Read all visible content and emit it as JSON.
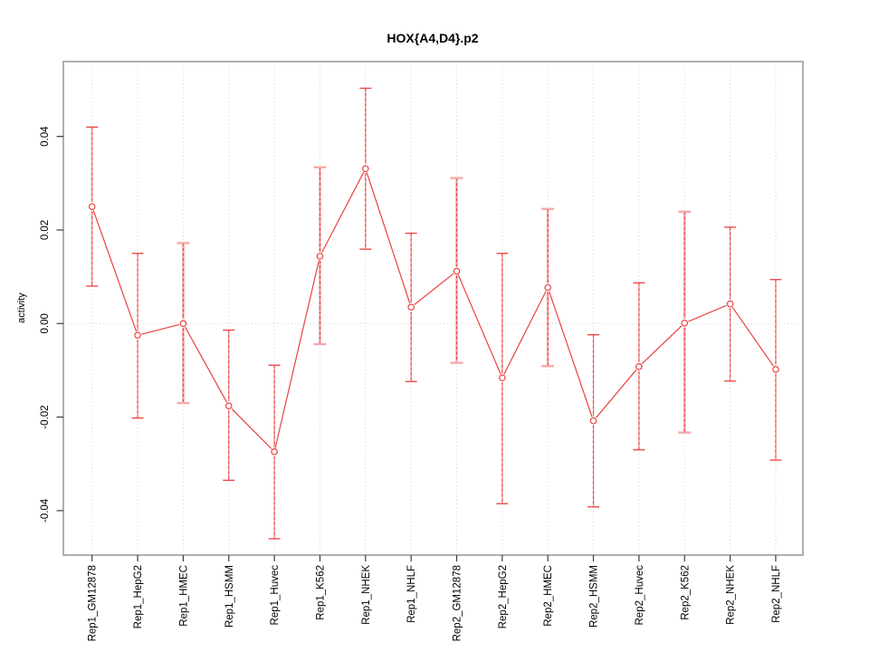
{
  "window": {
    "background": "#ffffff"
  },
  "chart_data": {
    "type": "line",
    "title": "HOX{A4,D4}.p2",
    "xlabel": "",
    "ylabel": "activity",
    "categories": [
      "Rep1_GM12878",
      "Rep1_HepG2",
      "Rep1_HMEC",
      "Rep1_HSMM",
      "Rep1_Huvec",
      "Rep1_K562",
      "Rep1_NHEK",
      "Rep1_NHLF",
      "Rep2_GM12878",
      "Rep2_HepG2",
      "Rep2_HMEC",
      "Rep2_HSMM",
      "Rep2_Huvec",
      "Rep2_K562",
      "Rep2_NHEK",
      "Rep2_NHLF"
    ],
    "series": [
      {
        "name": "activity",
        "values": [
          0.025,
          -0.0025,
          0.0,
          -0.0176,
          -0.0274,
          0.0144,
          0.0331,
          0.0035,
          0.0112,
          -0.0116,
          0.0077,
          -0.0208,
          -0.0092,
          0.0001,
          0.0042,
          -0.0098
        ],
        "ci_high": [
          0.042,
          0.015,
          0.0172,
          -0.0014,
          -0.0089,
          0.0334,
          0.0503,
          0.0193,
          0.0311,
          0.015,
          0.0245,
          -0.0024,
          0.0087,
          0.0239,
          0.0206,
          0.0094
        ],
        "ci_low": [
          0.008,
          -0.0202,
          -0.017,
          -0.0335,
          -0.046,
          -0.0044,
          0.0159,
          -0.0124,
          -0.0084,
          -0.0385,
          -0.0091,
          -0.0392,
          -0.027,
          -0.0233,
          -0.0123,
          -0.0292
        ],
        "bold_error_bar": [
          false,
          false,
          true,
          false,
          false,
          true,
          false,
          false,
          true,
          false,
          true,
          false,
          false,
          true,
          false,
          false
        ]
      }
    ],
    "yticks": [
      -0.04,
      -0.02,
      0,
      0.02,
      0.04
    ],
    "ytick_labels": [
      "-0.04",
      "-0.02",
      "0.00",
      "0.02",
      "0.04"
    ],
    "ylim": [
      -0.0495,
      0.056
    ],
    "x_label_rotation_deg": 90,
    "grid": {
      "vertical_lines": "dotted",
      "zero_line": "dotted",
      "horizontal_lines": "zero-only"
    },
    "legend": "none",
    "point_style": "open-circle",
    "colors": {
      "line": "#e9413f",
      "point": "#e9413f",
      "error_bar_dash": "#e9413f",
      "error_bar_thin": "#f09090",
      "error_bar_bold": "#f5a9a9",
      "grid": "#d6d6d6",
      "plot_border": "#9b9b9b",
      "axis_tick": "#3c3c3c",
      "text": "#000000",
      "background": "#ffffff"
    }
  }
}
